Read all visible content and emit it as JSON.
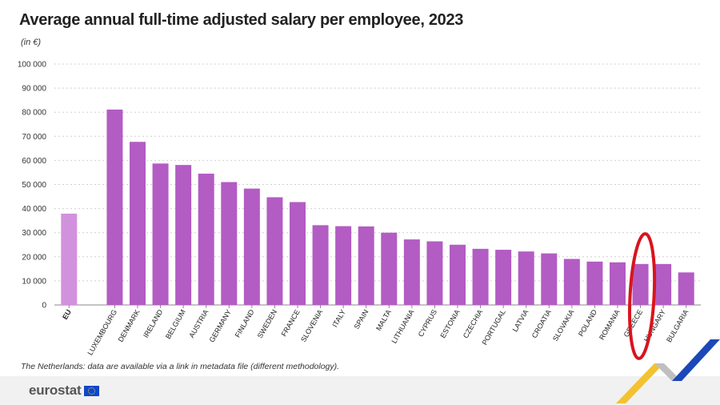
{
  "header": {
    "title": "Average annual full-time adjusted salary per employee, 2023",
    "unit": "(in €)"
  },
  "footnote": "The Netherlands: data are available via a link in metadata file (different methodology).",
  "brand": {
    "name": "eurostat"
  },
  "colors": {
    "bar": "#b35cc4",
    "bar_eu": "#d291dc",
    "highlight": "#d9141d",
    "grid": "#d0d0d0"
  },
  "chart_data": {
    "type": "bar",
    "title": "Average annual full-time adjusted salary per employee, 2023",
    "ylabel": "(in €)",
    "ylim": [
      0,
      100000
    ],
    "yticks": [
      "0",
      "10 000",
      "20 000",
      "30 000",
      "40 000",
      "50 000",
      "60 000",
      "70 000",
      "80 000",
      "90 000",
      "100 000"
    ],
    "grid": true,
    "categories": [
      "EU",
      "Luxembourg",
      "Denmark",
      "Ireland",
      "Belgium",
      "Austria",
      "Germany",
      "Finland",
      "Sweden",
      "France",
      "Slovenia",
      "Italy",
      "Spain",
      "Malta",
      "Lithuania",
      "Cyprus",
      "Estonia",
      "Czechia",
      "Portugal",
      "Latvia",
      "Croatia",
      "Slovakia",
      "Poland",
      "Romania",
      "Greece",
      "Hungary",
      "Bulgaria"
    ],
    "values": [
      37900,
      81100,
      67700,
      58700,
      58100,
      54500,
      51000,
      48300,
      44700,
      42700,
      33100,
      32700,
      32600,
      30000,
      27200,
      26400,
      25000,
      23300,
      22900,
      22200,
      21400,
      19100,
      18000,
      17700,
      17000,
      17000,
      13500
    ],
    "highlighted": "Greece"
  }
}
